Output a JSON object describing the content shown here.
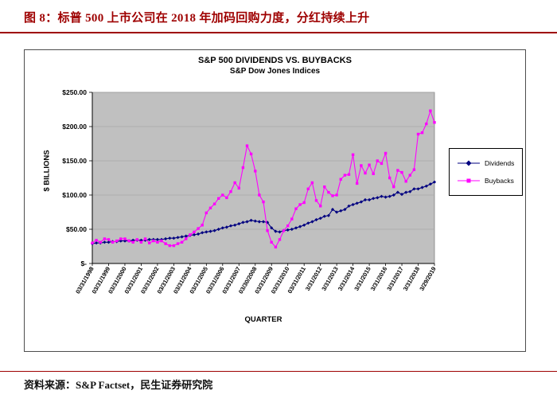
{
  "page": {
    "figure_title": "图 8：标普 500 上市公司在 2018 年加码回购力度，分红持续上升",
    "source_label": "资料来源：",
    "source_text": "S&P Factset，民生证券研究院",
    "accent_color": "#9e0000"
  },
  "chart_data": {
    "type": "line",
    "title": "S&P 500 DIVIDENDS VS. BUYBACKS",
    "subtitle": "S&P Dow Jones Indices",
    "xlabel": "QUARTER",
    "ylabel": "$ BILLIONS",
    "ylim": [
      0,
      250
    ],
    "y_tick_step": 50,
    "y_tick_labels": [
      "$-",
      "$50.00",
      "$100.00",
      "$150.00",
      "$200.00",
      "$250.00"
    ],
    "x_tick_every": 4,
    "x_tick_labels": [
      "03/31/1998",
      "03/31/1999",
      "03/31/2000",
      "03/31/2001",
      "03/31/2002",
      "03/31/2003",
      "03/31/2004",
      "03/31/2005",
      "03/31/2006",
      "03/31/2007",
      "03/30/2008",
      "03/31/2009",
      "03/31/2010",
      "03/31/2011",
      "3/31/2012",
      "3/31/2013",
      "3/31/2014",
      "3/31/2015",
      "3/31/2016",
      "3/31/2017",
      "3/31/2018",
      "3/29/2019"
    ],
    "grid": true,
    "plot_bg": "#c0c0c0",
    "legend_position": "right",
    "series": [
      {
        "name": "Dividends",
        "color": "#000080",
        "marker": "diamond",
        "values": [
          29,
          30,
          30,
          31,
          31,
          32,
          32,
          33,
          33,
          33,
          34,
          34,
          34,
          34,
          35,
          35,
          35,
          35,
          36,
          37,
          37,
          38,
          39,
          40,
          41,
          42,
          43,
          45,
          46,
          47,
          48,
          50,
          52,
          53,
          55,
          56,
          58,
          60,
          61,
          63,
          62,
          61,
          61,
          60,
          52,
          47,
          46,
          48,
          49,
          50,
          52,
          54,
          56,
          59,
          61,
          64,
          66,
          69,
          70,
          79,
          75,
          77,
          79,
          84,
          86,
          88,
          90,
          93,
          93,
          95,
          96,
          98,
          97,
          98,
          100,
          104,
          101,
          104,
          105,
          109,
          109,
          111,
          113,
          116,
          119
        ]
      },
      {
        "name": "Buybacks",
        "color": "#ff00ff",
        "marker": "square",
        "values": [
          30,
          34,
          31,
          36,
          35,
          31,
          33,
          36,
          36,
          33,
          31,
          35,
          31,
          36,
          30,
          33,
          31,
          33,
          29,
          26,
          26,
          29,
          31,
          36,
          42,
          46,
          51,
          56,
          74,
          81,
          87,
          95,
          100,
          96,
          105,
          118,
          110,
          140,
          172,
          160,
          135,
          100,
          90,
          48,
          31,
          24,
          35,
          48,
          55,
          65,
          80,
          86,
          89,
          109,
          118,
          92,
          84,
          112,
          104,
          99,
          100,
          123,
          129,
          130,
          159,
          117,
          143,
          132,
          144,
          131,
          150,
          146,
          161,
          125,
          112,
          136,
          133,
          120,
          129,
          137,
          189,
          191,
          204,
          223,
          206
        ]
      }
    ]
  }
}
